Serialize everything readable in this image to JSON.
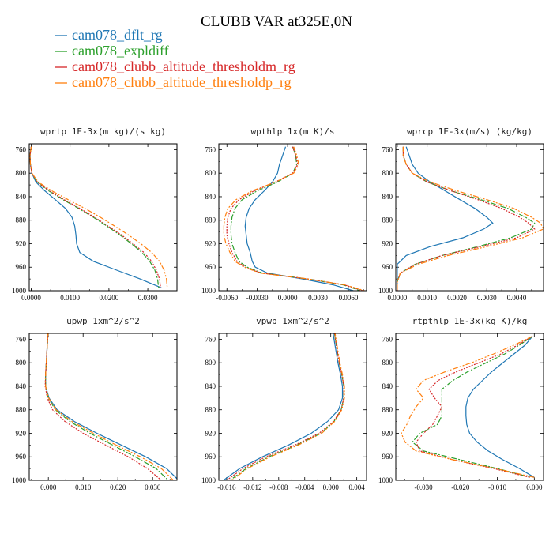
{
  "figure": {
    "title": "CLUBB VAR at325E,0N"
  },
  "legend": [
    {
      "label": "cam078_dflt_rg",
      "color": "#1f77b4",
      "dash": ""
    },
    {
      "label": "cam078_expldiff",
      "color": "#2ca02c",
      "dash": "7,2,2,2"
    },
    {
      "label": "cam078_clubb_altitude_thresholdm_rg",
      "color": "#d62728",
      "dash": "2,1.5"
    },
    {
      "label": "cam078_clubb_altitude_thresholdp_rg",
      "color": "#ff7f0e",
      "dash": "7,2,2,2,2,2"
    }
  ],
  "chart_data": [
    {
      "type": "line",
      "title": "wprtp  1E-3x(m kg)/(s kg)",
      "xlim": [
        -0.0005,
        0.0375
      ],
      "ylim": [
        1000,
        750
      ],
      "xticks": [
        0.0,
        0.01,
        0.02,
        0.03
      ],
      "xtick_labels": [
        "0.0000",
        "0.0100",
        "0.0200",
        "0.0300"
      ],
      "yticks": [
        760,
        800,
        840,
        880,
        920,
        960,
        1000
      ],
      "y": [
        755,
        770,
        785,
        800,
        815,
        830,
        845,
        860,
        875,
        890,
        905,
        920,
        935,
        950,
        965,
        980,
        995
      ],
      "series": [
        {
          "name": "cam078_dflt_rg",
          "values": [
            0.0,
            -0.0003,
            -0.0002,
            0.0002,
            0.0012,
            0.0035,
            0.0062,
            0.0088,
            0.0105,
            0.0112,
            0.0115,
            0.0117,
            0.0125,
            0.016,
            0.022,
            0.028,
            0.0335
          ]
        },
        {
          "name": "cam078_expldiff",
          "values": [
            0.0,
            -0.0003,
            -0.0002,
            0.0002,
            0.0015,
            0.0045,
            0.0082,
            0.0122,
            0.016,
            0.0195,
            0.0228,
            0.0258,
            0.0285,
            0.0305,
            0.0318,
            0.0325,
            0.0328
          ]
        },
        {
          "name": "cam078_clubb_altitude_thresholdm_rg",
          "values": [
            0.0,
            -0.0003,
            -0.0002,
            0.0002,
            0.0016,
            0.0047,
            0.0085,
            0.0125,
            0.0163,
            0.0198,
            0.0232,
            0.0262,
            0.029,
            0.031,
            0.0322,
            0.033,
            0.0333
          ]
        },
        {
          "name": "cam078_clubb_altitude_thresholdp_rg",
          "values": [
            0.0,
            -0.0003,
            -0.0002,
            0.0002,
            0.0018,
            0.0053,
            0.0095,
            0.0138,
            0.0178,
            0.0215,
            0.025,
            0.0282,
            0.031,
            0.033,
            0.0342,
            0.0348,
            0.035
          ]
        }
      ]
    },
    {
      "type": "line",
      "title": "wpthlp  1x(m K)/s",
      "xlim": [
        -0.0068,
        0.0078
      ],
      "ylim": [
        1000,
        750
      ],
      "xticks": [
        -0.006,
        -0.003,
        0.0,
        0.003,
        0.006
      ],
      "xtick_labels": [
        "-0.0060",
        "-0.0030",
        "0.0000",
        "0.0030",
        "0.0060"
      ],
      "yticks": [
        760,
        800,
        840,
        880,
        920,
        960,
        1000
      ],
      "y": [
        755,
        770,
        785,
        800,
        815,
        830,
        845,
        860,
        875,
        890,
        905,
        920,
        935,
        950,
        960,
        970,
        980,
        990,
        1000
      ],
      "series": [
        {
          "name": "cam078_dflt_rg",
          "values": [
            -0.0002,
            -0.0005,
            -0.0008,
            -0.001,
            -0.0015,
            -0.0023,
            -0.0032,
            -0.0038,
            -0.0041,
            -0.0042,
            -0.0041,
            -0.004,
            -0.0037,
            -0.0035,
            -0.0032,
            -0.002,
            0.0015,
            0.0045,
            0.0065
          ]
        },
        {
          "name": "cam078_expldiff",
          "values": [
            0.0005,
            0.0008,
            0.0009,
            0.0005,
            -0.001,
            -0.003,
            -0.0045,
            -0.0052,
            -0.0055,
            -0.0056,
            -0.0056,
            -0.0055,
            -0.0052,
            -0.0048,
            -0.004,
            -0.0025,
            0.002,
            0.0055,
            0.0072
          ]
        },
        {
          "name": "cam078_clubb_altitude_thresholdm_rg",
          "values": [
            0.0005,
            0.0008,
            0.001,
            0.0005,
            -0.0012,
            -0.0033,
            -0.0048,
            -0.0056,
            -0.0059,
            -0.006,
            -0.006,
            -0.0058,
            -0.0055,
            -0.005,
            -0.0042,
            -0.0026,
            0.002,
            0.0056,
            0.0074
          ]
        },
        {
          "name": "cam078_clubb_altitude_thresholdp_rg",
          "values": [
            0.0006,
            0.0009,
            0.0011,
            0.0006,
            -0.0012,
            -0.0035,
            -0.0051,
            -0.0059,
            -0.0062,
            -0.0063,
            -0.0063,
            -0.0061,
            -0.0057,
            -0.0052,
            -0.0043,
            -0.0027,
            0.002,
            0.0057,
            0.0076
          ]
        }
      ]
    },
    {
      "type": "line",
      "title": "wprcp  1E-3x(m/s) (kg/kg)",
      "xlim": [
        -5e-05,
        0.0049
      ],
      "ylim": [
        1000,
        750
      ],
      "xticks": [
        0.0,
        0.001,
        0.002,
        0.003,
        0.004
      ],
      "xtick_labels": [
        "0.0000",
        "0.0010",
        "0.0020",
        "0.0030",
        "0.0040"
      ],
      "yticks": [
        760,
        800,
        840,
        880,
        920,
        960,
        1000
      ],
      "y": [
        755,
        770,
        785,
        800,
        815,
        830,
        845,
        860,
        875,
        885,
        895,
        910,
        925,
        940,
        955,
        970,
        985,
        1000
      ],
      "series": [
        {
          "name": "cam078_dflt_rg",
          "values": [
            0.0003,
            0.0004,
            0.0005,
            0.0007,
            0.0011,
            0.0016,
            0.0021,
            0.0026,
            0.003,
            0.0032,
            0.0029,
            0.0022,
            0.0011,
            0.0003,
            0.0,
            0.0,
            0.0,
            0.0
          ]
        },
        {
          "name": "cam078_expldiff",
          "values": [
            0.0002,
            0.0002,
            0.0003,
            0.0005,
            0.001,
            0.0018,
            0.0028,
            0.0037,
            0.0043,
            0.0046,
            0.0045,
            0.0038,
            0.0027,
            0.0015,
            0.0006,
            0.0001,
            0.0,
            0.0
          ]
        },
        {
          "name": "cam078_clubb_altitude_thresholdm_rg",
          "values": [
            0.0002,
            0.0002,
            0.0003,
            0.0005,
            0.001,
            0.0018,
            0.0027,
            0.0035,
            0.0041,
            0.0044,
            0.0046,
            0.004,
            0.0028,
            0.0015,
            0.0006,
            0.0001,
            0.0,
            0.0
          ]
        },
        {
          "name": "cam078_clubb_altitude_thresholdp_rg",
          "values": [
            0.0002,
            0.0002,
            0.0003,
            0.0005,
            0.0011,
            0.002,
            0.003,
            0.0039,
            0.0045,
            0.0048,
            0.0049,
            0.0042,
            0.003,
            0.0017,
            0.0007,
            0.0001,
            0.0,
            0.0
          ]
        }
      ]
    },
    {
      "type": "line",
      "title": "upwp  1xm^2/s^2",
      "xlim": [
        -0.0055,
        0.037
      ],
      "ylim": [
        1000,
        750
      ],
      "xticks": [
        0.0,
        0.01,
        0.02,
        0.03
      ],
      "xtick_labels": [
        "0.000",
        "0.010",
        "0.020",
        "0.030"
      ],
      "yticks": [
        760,
        800,
        840,
        880,
        920,
        960,
        1000
      ],
      "y": [
        745,
        760,
        780,
        800,
        820,
        840,
        860,
        880,
        900,
        920,
        940,
        960,
        980,
        1000
      ],
      "series": [
        {
          "name": "cam078_dflt_rg",
          "values": [
            0.0,
            -0.0002,
            -0.0004,
            -0.0006,
            -0.0008,
            -0.0008,
            0.0002,
            0.0025,
            0.0075,
            0.014,
            0.021,
            0.028,
            0.034,
            0.0375
          ]
        },
        {
          "name": "cam078_expldiff",
          "values": [
            0.0,
            -0.0002,
            -0.0004,
            -0.0006,
            -0.0008,
            -0.0008,
            0.0,
            0.002,
            0.0062,
            0.012,
            0.0185,
            0.025,
            0.031,
            0.0345
          ]
        },
        {
          "name": "cam078_clubb_altitude_thresholdm_rg",
          "values": [
            0.0,
            -0.0002,
            -0.0004,
            -0.0006,
            -0.0008,
            -0.0009,
            -0.0003,
            0.0012,
            0.0048,
            0.01,
            0.0165,
            0.023,
            0.0285,
            0.0325
          ]
        },
        {
          "name": "cam078_clubb_altitude_thresholdp_rg",
          "values": [
            0.0,
            -0.0002,
            -0.0004,
            -0.0006,
            -0.0008,
            -0.0008,
            0.0001,
            0.0022,
            0.0068,
            0.013,
            0.0195,
            0.0265,
            0.0325,
            0.036
          ]
        }
      ]
    },
    {
      "type": "line",
      "title": "vpwp  1xm^2/s^2",
      "xlim": [
        -0.0172,
        0.0055
      ],
      "ylim": [
        1000,
        750
      ],
      "xticks": [
        -0.016,
        -0.012,
        -0.008,
        -0.004,
        0.0,
        0.004
      ],
      "xtick_labels": [
        "-0.016",
        "-0.012",
        "-0.008",
        "-0.004",
        "0.000",
        "0.004"
      ],
      "yticks": [
        760,
        800,
        840,
        880,
        920,
        960,
        1000
      ],
      "y": [
        745,
        760,
        780,
        800,
        820,
        840,
        860,
        880,
        900,
        920,
        940,
        960,
        980,
        1000
      ],
      "series": [
        {
          "name": "cam078_dflt_rg",
          "values": [
            0.0003,
            0.0005,
            0.0008,
            0.0011,
            0.0015,
            0.0018,
            0.0018,
            0.0012,
            -0.0005,
            -0.003,
            -0.0065,
            -0.0105,
            -0.014,
            -0.0165
          ]
        },
        {
          "name": "cam078_expldiff",
          "values": [
            0.0005,
            0.0007,
            0.001,
            0.0013,
            0.0017,
            0.002,
            0.002,
            0.0016,
            0.0005,
            -0.0015,
            -0.0052,
            -0.0095,
            -0.013,
            -0.0155
          ]
        },
        {
          "name": "cam078_clubb_altitude_thresholdm_rg",
          "values": [
            0.0005,
            0.0007,
            0.001,
            0.0013,
            0.0017,
            0.002,
            0.002,
            0.0016,
            0.0004,
            -0.0018,
            -0.0055,
            -0.01,
            -0.0135,
            -0.016
          ]
        },
        {
          "name": "cam078_clubb_altitude_thresholdp_rg",
          "values": [
            0.0006,
            0.0008,
            0.0011,
            0.0014,
            0.0018,
            0.0021,
            0.0021,
            0.0017,
            0.0006,
            -0.0014,
            -0.005,
            -0.0093,
            -0.0128,
            -0.0152
          ]
        }
      ]
    },
    {
      "type": "line",
      "title": "rtpthlp  1E-3x(kg K)/kg",
      "xlim": [
        -0.0375,
        0.0025
      ],
      "ylim": [
        1000,
        750
      ],
      "xticks": [
        -0.03,
        -0.02,
        -0.01,
        0.0
      ],
      "xtick_labels": [
        "-0.030",
        "-0.020",
        "-0.010",
        "0.000"
      ],
      "yticks": [
        760,
        800,
        840,
        880,
        920,
        960,
        1000
      ],
      "y": [
        755,
        770,
        785,
        800,
        815,
        830,
        845,
        860,
        875,
        890,
        905,
        920,
        935,
        950,
        965,
        980,
        995
      ],
      "series": [
        {
          "name": "cam078_dflt_rg",
          "values": [
            -0.0005,
            -0.0025,
            -0.0055,
            -0.0085,
            -0.0115,
            -0.014,
            -0.0165,
            -0.018,
            -0.0185,
            -0.0185,
            -0.0183,
            -0.0175,
            -0.0155,
            -0.0125,
            -0.0085,
            -0.004,
            0.0
          ]
        },
        {
          "name": "cam078_expldiff",
          "values": [
            -0.0005,
            -0.004,
            -0.008,
            -0.013,
            -0.018,
            -0.022,
            -0.025,
            -0.025,
            -0.025,
            -0.025,
            -0.0262,
            -0.031,
            -0.033,
            -0.03,
            -0.02,
            -0.01,
            -0.001
          ]
        },
        {
          "name": "cam078_clubb_altitude_thresholdm_rg",
          "values": [
            -0.0005,
            -0.0045,
            -0.009,
            -0.015,
            -0.021,
            -0.026,
            -0.0285,
            -0.027,
            -0.025,
            -0.0262,
            -0.0275,
            -0.03,
            -0.032,
            -0.031,
            -0.022,
            -0.011,
            -0.0012
          ]
        },
        {
          "name": "cam078_clubb_altitude_thresholdp_rg",
          "values": [
            -0.0005,
            -0.0055,
            -0.011,
            -0.017,
            -0.024,
            -0.03,
            -0.032,
            -0.03,
            -0.032,
            -0.0335,
            -0.0345,
            -0.036,
            -0.035,
            -0.032,
            -0.022,
            -0.0105,
            0.0
          ]
        }
      ]
    }
  ]
}
